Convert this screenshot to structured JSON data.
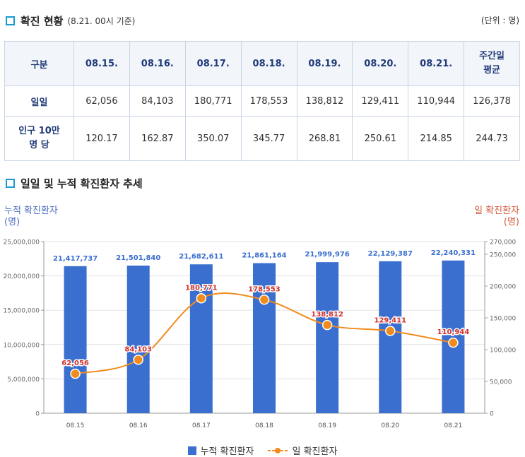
{
  "header": {
    "title": "확진 현황",
    "subtitle": "(8.21. 00시 기준)",
    "unit": "(단위 : 명)"
  },
  "table": {
    "columns": [
      "구분",
      "08.15.",
      "08.16.",
      "08.17.",
      "08.18.",
      "08.19.",
      "08.20.",
      "08.21.",
      "주간일\n평균"
    ],
    "rows": [
      {
        "label": "일일",
        "values": [
          "62,056",
          "84,103",
          "180,771",
          "178,553",
          "138,812",
          "129,411",
          "110,944",
          "126,378"
        ]
      },
      {
        "label": "인구 10만\n명 당",
        "values": [
          "120.17",
          "162.87",
          "350.07",
          "345.77",
          "268.81",
          "250.61",
          "214.85",
          "244.73"
        ]
      }
    ]
  },
  "chart_section": {
    "title": "일일 및 누적 확진환자 추세",
    "left_axis_title": "누적 확진환자\n(명)",
    "right_axis_title": "일 확진환자\n(명)"
  },
  "colors": {
    "bar": "#3a6fcf",
    "line": "#f08c1e",
    "marker": "#f08c1e",
    "bar_label": "#3a6fcf",
    "line_label": "#d2312c",
    "accent": "#1a9bd1"
  },
  "chart_data": {
    "type": "bar+line",
    "categories": [
      "08.15",
      "08.16",
      "08.17",
      "08.18",
      "08.19",
      "08.20",
      "08.21"
    ],
    "series": [
      {
        "name": "누적 확진환자",
        "type": "bar",
        "axis": "left",
        "values": [
          21417737,
          21501840,
          21682611,
          21861164,
          21999976,
          22129387,
          22240331
        ],
        "labels": [
          "21,417,737",
          "21,501,840",
          "21,682,611",
          "21,861,164",
          "21,999,976",
          "22,129,387",
          "22,240,331"
        ]
      },
      {
        "name": "일 확진환자",
        "type": "line",
        "axis": "right",
        "values": [
          62056,
          84103,
          180771,
          178553,
          138812,
          129411,
          110944
        ],
        "labels": [
          "62,056",
          "84,103",
          "180,771",
          "178,553",
          "138,812",
          "129,411",
          "110,944"
        ]
      }
    ],
    "left_axis": {
      "range": [
        0,
        25000000
      ],
      "ticks": [
        0,
        5000000,
        10000000,
        15000000,
        20000000,
        25000000
      ],
      "tick_labels": [
        "0",
        "5,000,000",
        "10,000,000",
        "15,000,000",
        "20,000,000",
        "25,000,000"
      ]
    },
    "right_axis": {
      "range": [
        0,
        270000
      ],
      "ticks": [
        0,
        50000,
        100000,
        150000,
        200000,
        250000,
        270000
      ],
      "tick_labels": [
        "0",
        "50,000",
        "100,000",
        "150,000",
        "200,000",
        "250,000",
        "270,000"
      ]
    },
    "grid": true,
    "legend": "bottom-center"
  }
}
